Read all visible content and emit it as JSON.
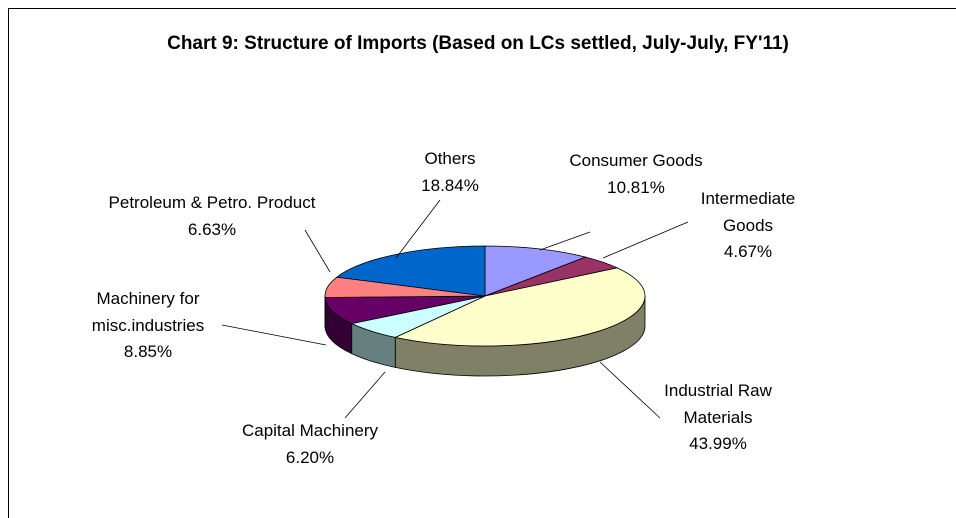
{
  "chart_data": {
    "type": "pie",
    "title": "Chart 9: Structure of Imports (Based on LCs settled, July-July, FY'11)",
    "categories": [
      "Consumer Goods",
      "Intermediate Goods",
      "Industrial Raw Materials",
      "Capital Machinery",
      "Machinery for misc.industries",
      "Petroleum & Petro. Product",
      "Others"
    ],
    "values": [
      10.81,
      4.67,
      43.99,
      6.2,
      8.85,
      6.63,
      18.84
    ],
    "value_labels": [
      "10.81%",
      "4.67%",
      "43.99%",
      "6.20%",
      "8.85%",
      "6.63%",
      "18.84%"
    ],
    "colors": [
      "#9999ff",
      "#993366",
      "#ffffcc",
      "#ccffff",
      "#660066",
      "#ff8080",
      "#0066cc"
    ]
  }
}
